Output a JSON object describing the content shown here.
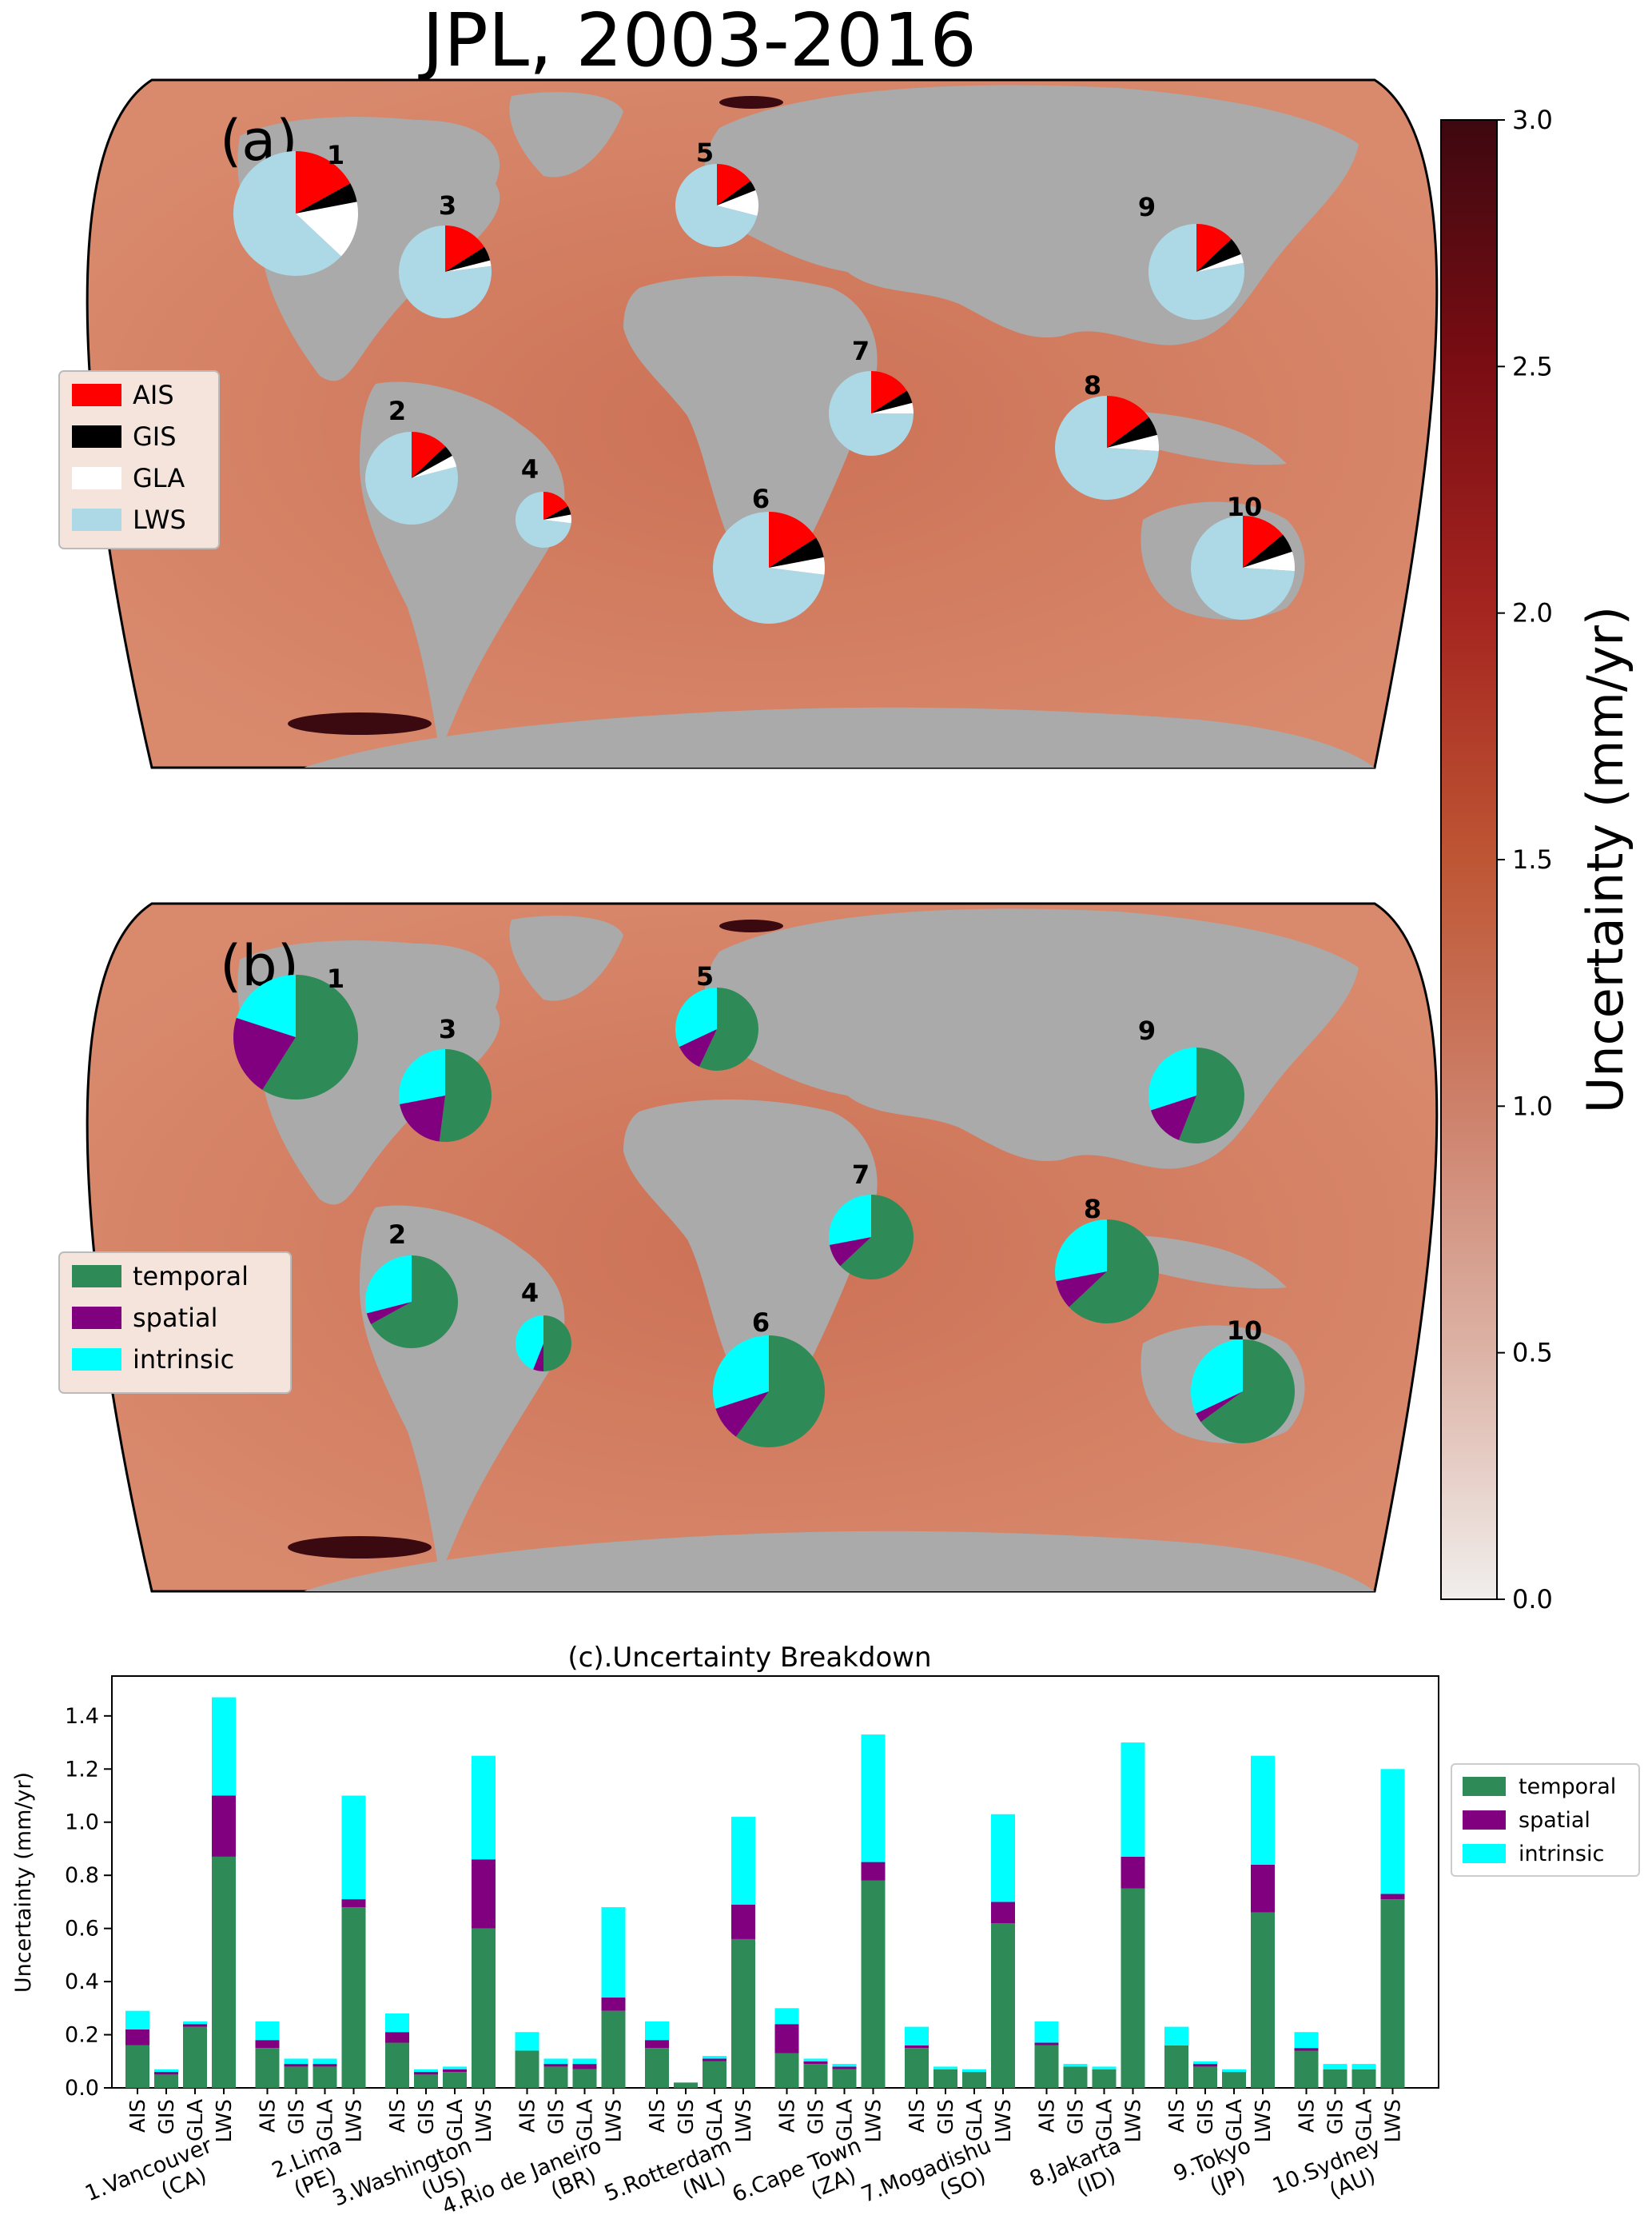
{
  "figure": {
    "title": "JPL, 2003-2016",
    "panel_a_label": "(a)",
    "panel_b_label": "(b)"
  },
  "colorbar": {
    "label": "Uncertainty (mm/yr)",
    "ticks": [
      "0.0",
      "0.5",
      "1.0",
      "1.5",
      "2.0",
      "2.5",
      "3.0"
    ],
    "colors": [
      "#f1eeec",
      "#dcb3a6",
      "#cd806a",
      "#be5634",
      "#a52520",
      "#7a0d13",
      "#3e0810"
    ]
  },
  "map_colors": {
    "ocean": "#cf7a5c",
    "land": "#a9a9a9",
    "high": "#3a0a10",
    "low": "#e7a48c"
  },
  "source_legend": [
    {
      "label": "AIS",
      "color": "#ff0000"
    },
    {
      "label": "GIS",
      "color": "#000000"
    },
    {
      "label": "GLA",
      "color": "#ffffff"
    },
    {
      "label": "LWS",
      "color": "#add8e6"
    }
  ],
  "type_legend": [
    {
      "label": "temporal",
      "color": "#2e8b57"
    },
    {
      "label": "spatial",
      "color": "#800080"
    },
    {
      "label": "intrinsic",
      "color": "#00ffff"
    }
  ],
  "sites": [
    {
      "num": "1",
      "name": "1.Vancouver",
      "country": "(CA)"
    },
    {
      "num": "2",
      "name": "2.Lima",
      "country": "(PE)"
    },
    {
      "num": "3",
      "name": "3.Washington",
      "country": "(US)"
    },
    {
      "num": "4",
      "name": "4.Rio de Janeiro",
      "country": "(BR)"
    },
    {
      "num": "5",
      "name": "5.Rotterdam",
      "country": "(NL)"
    },
    {
      "num": "6",
      "name": "6.Cape Town",
      "country": "(ZA)"
    },
    {
      "num": "7",
      "name": "7.Mogadishu",
      "country": "(SO)"
    },
    {
      "num": "8",
      "name": "8.Jakarta",
      "country": "(ID)"
    },
    {
      "num": "9",
      "name": "9.Tokyo",
      "country": "(JP)"
    },
    {
      "num": "10",
      "name": "10.Sydney",
      "country": "(AU)"
    }
  ],
  "chart_data": {
    "type": "bar",
    "stacked": true,
    "title": "(c).Uncertainty Breakdown",
    "ylabel": "Uncertainty (mm/yr)",
    "xlabel": "",
    "ylim": [
      0,
      1.55
    ],
    "yticks": [
      "0.0",
      "0.2",
      "0.4",
      "0.6",
      "0.8",
      "1.0",
      "1.2",
      "1.4"
    ],
    "sources": [
      "AIS",
      "GIS",
      "GLA",
      "LWS"
    ],
    "groups": [
      "1.Vancouver (CA)",
      "2.Lima (PE)",
      "3.Washington (US)",
      "4.Rio de Janeiro (BR)",
      "5.Rotterdam (NL)",
      "6.Cape Town (ZA)",
      "7.Mogadishu (SO)",
      "8.Jakarta (ID)",
      "9.Tokyo (JP)",
      "10.Sydney (AU)"
    ],
    "legend_position": "right",
    "series": [
      {
        "name": "temporal",
        "values": [
          [
            0.16,
            0.05,
            0.23,
            0.87
          ],
          [
            0.15,
            0.08,
            0.08,
            0.68
          ],
          [
            0.17,
            0.05,
            0.06,
            0.6
          ],
          [
            0.14,
            0.08,
            0.07,
            0.29
          ],
          [
            0.15,
            0.02,
            0.1,
            0.56
          ],
          [
            0.13,
            0.09,
            0.07,
            0.78
          ],
          [
            0.15,
            0.07,
            0.06,
            0.62
          ],
          [
            0.16,
            0.08,
            0.07,
            0.75
          ],
          [
            0.16,
            0.08,
            0.06,
            0.66
          ],
          [
            0.14,
            0.07,
            0.07,
            0.71
          ]
        ]
      },
      {
        "name": "spatial",
        "values": [
          [
            0.06,
            0.01,
            0.01,
            0.23
          ],
          [
            0.03,
            0.01,
            0.01,
            0.03
          ],
          [
            0.04,
            0.01,
            0.01,
            0.26
          ],
          [
            0.0,
            0.01,
            0.02,
            0.05
          ],
          [
            0.03,
            0.0,
            0.01,
            0.13
          ],
          [
            0.11,
            0.01,
            0.01,
            0.07
          ],
          [
            0.01,
            0.0,
            0.0,
            0.08
          ],
          [
            0.01,
            0.0,
            0.0,
            0.12
          ],
          [
            0.0,
            0.01,
            0.0,
            0.18
          ],
          [
            0.01,
            0.0,
            0.0,
            0.02
          ]
        ]
      },
      {
        "name": "intrinsic",
        "values": [
          [
            0.07,
            0.01,
            0.01,
            0.37
          ],
          [
            0.07,
            0.02,
            0.02,
            0.39
          ],
          [
            0.07,
            0.01,
            0.01,
            0.39
          ],
          [
            0.07,
            0.02,
            0.02,
            0.34
          ],
          [
            0.07,
            0.0,
            0.01,
            0.33
          ],
          [
            0.06,
            0.01,
            0.01,
            0.48
          ],
          [
            0.07,
            0.01,
            0.01,
            0.33
          ],
          [
            0.08,
            0.01,
            0.01,
            0.43
          ],
          [
            0.07,
            0.01,
            0.01,
            0.41
          ],
          [
            0.06,
            0.02,
            0.02,
            0.47
          ]
        ]
      }
    ],
    "map_pies": {
      "source_fractions": [
        [
          0.17,
          0.05,
          0.15,
          0.63
        ],
        [
          0.13,
          0.04,
          0.04,
          0.79
        ],
        [
          0.16,
          0.05,
          0.02,
          0.77
        ],
        [
          0.17,
          0.05,
          0.05,
          0.73
        ],
        [
          0.15,
          0.04,
          0.1,
          0.71
        ],
        [
          0.16,
          0.06,
          0.05,
          0.73
        ],
        [
          0.16,
          0.05,
          0.04,
          0.75
        ],
        [
          0.15,
          0.06,
          0.05,
          0.74
        ],
        [
          0.13,
          0.06,
          0.03,
          0.78
        ],
        [
          0.14,
          0.06,
          0.06,
          0.74
        ]
      ],
      "type_fractions": [
        [
          0.59,
          0.21,
          0.2
        ],
        [
          0.67,
          0.04,
          0.29
        ],
        [
          0.52,
          0.2,
          0.28
        ],
        [
          0.5,
          0.06,
          0.44
        ],
        [
          0.57,
          0.11,
          0.32
        ],
        [
          0.6,
          0.1,
          0.3
        ],
        [
          0.63,
          0.09,
          0.28
        ],
        [
          0.63,
          0.09,
          0.28
        ],
        [
          0.56,
          0.14,
          0.3
        ],
        [
          0.65,
          0.03,
          0.32
        ]
      ]
    }
  }
}
